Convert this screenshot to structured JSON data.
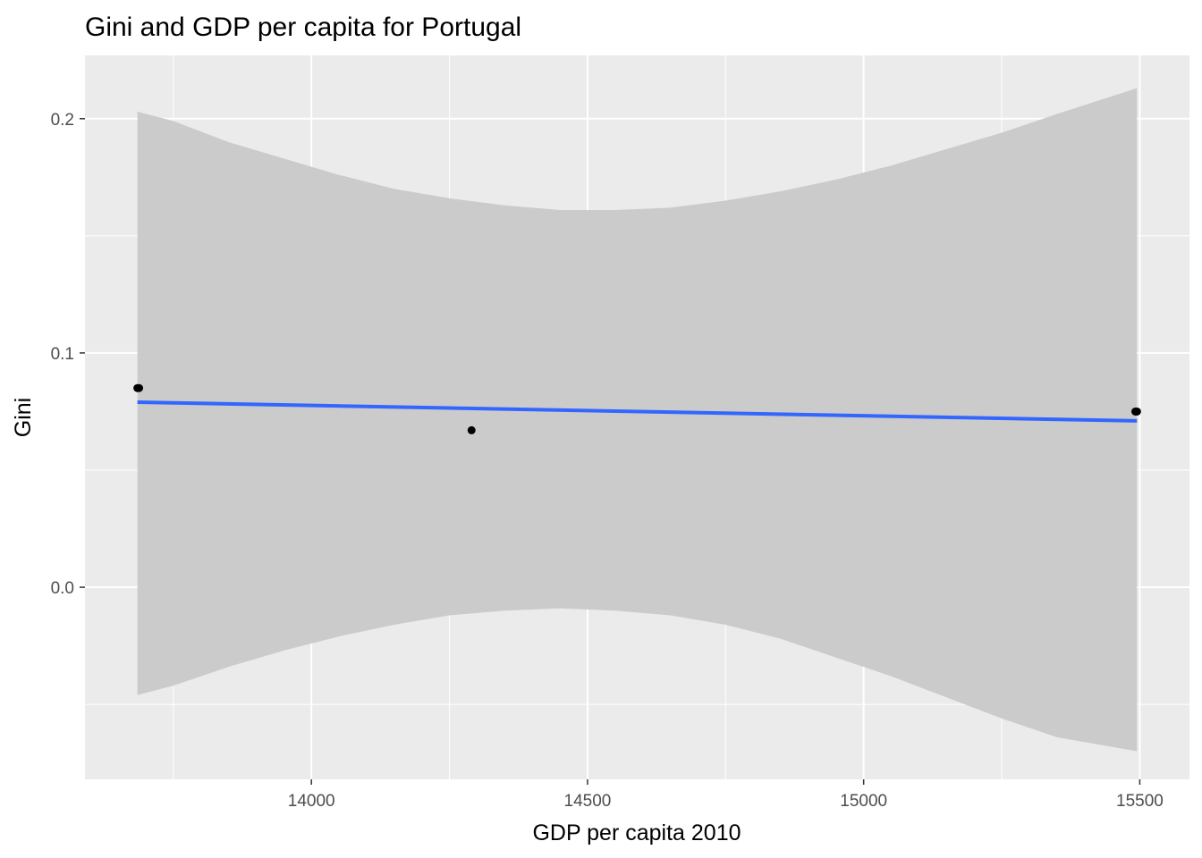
{
  "chart_data": {
    "type": "scatter",
    "title": "Gini and GDP per capita for Portugal",
    "xlabel": "GDP per capita 2010",
    "ylabel": "Gini",
    "xlim": [
      13590,
      15590
    ],
    "ylim": [
      -0.082,
      0.227
    ],
    "x_ticks": [
      14000,
      14500,
      15000,
      15500
    ],
    "x_tick_labels": [
      "14000",
      "14500",
      "15000",
      "15500"
    ],
    "y_ticks": [
      0.0,
      0.1,
      0.2
    ],
    "y_tick_labels": [
      "0.0",
      "0.1",
      "0.2"
    ],
    "x_minor_ticks": [
      13750,
      14250,
      14750,
      15250
    ],
    "y_minor_ticks": [
      -0.05,
      0.05,
      0.15
    ],
    "grid": true,
    "points": [
      {
        "x": 13685,
        "y": 0.085
      },
      {
        "x": 13688,
        "y": 0.085
      },
      {
        "x": 14290,
        "y": 0.067
      },
      {
        "x": 15492,
        "y": 0.075
      },
      {
        "x": 15495,
        "y": 0.075
      }
    ],
    "fit_line": {
      "x": [
        13685,
        15495
      ],
      "y": [
        0.079,
        0.071
      ]
    },
    "confidence_band": [
      {
        "x": 13685,
        "lower": -0.046,
        "upper": 0.203
      },
      {
        "x": 13750,
        "lower": -0.042,
        "upper": 0.199
      },
      {
        "x": 13850,
        "lower": -0.034,
        "upper": 0.19
      },
      {
        "x": 13950,
        "lower": -0.027,
        "upper": 0.183
      },
      {
        "x": 14050,
        "lower": -0.021,
        "upper": 0.176
      },
      {
        "x": 14150,
        "lower": -0.016,
        "upper": 0.17
      },
      {
        "x": 14250,
        "lower": -0.012,
        "upper": 0.166
      },
      {
        "x": 14350,
        "lower": -0.01,
        "upper": 0.163
      },
      {
        "x": 14450,
        "lower": -0.009,
        "upper": 0.161
      },
      {
        "x": 14550,
        "lower": -0.01,
        "upper": 0.161
      },
      {
        "x": 14650,
        "lower": -0.012,
        "upper": 0.162
      },
      {
        "x": 14750,
        "lower": -0.016,
        "upper": 0.165
      },
      {
        "x": 14850,
        "lower": -0.022,
        "upper": 0.169
      },
      {
        "x": 14950,
        "lower": -0.03,
        "upper": 0.174
      },
      {
        "x": 15050,
        "lower": -0.038,
        "upper": 0.18
      },
      {
        "x": 15150,
        "lower": -0.047,
        "upper": 0.187
      },
      {
        "x": 15250,
        "lower": -0.056,
        "upper": 0.194
      },
      {
        "x": 15350,
        "lower": -0.064,
        "upper": 0.202
      },
      {
        "x": 15495,
        "lower": -0.07,
        "upper": 0.213
      }
    ],
    "colors": {
      "panel_background": "#ebebeb",
      "grid": "#ffffff",
      "band": "#cbcbcb",
      "fit_line": "#3366ff",
      "points": "#000000"
    }
  }
}
